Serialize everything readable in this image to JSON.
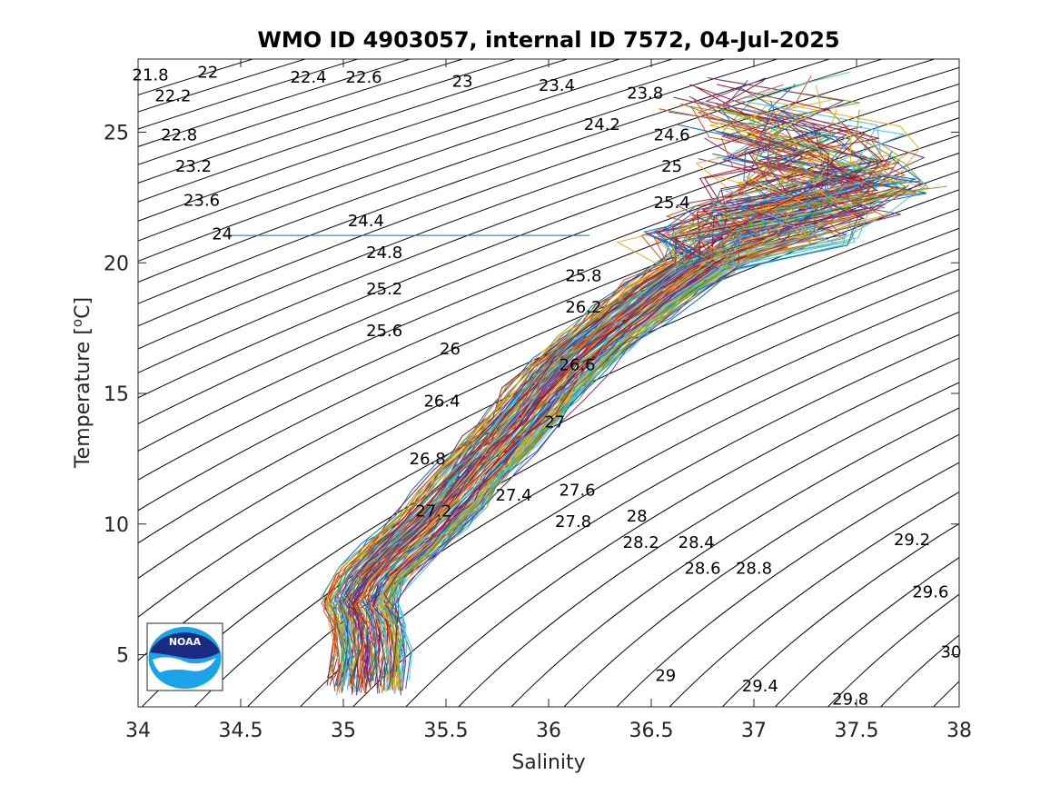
{
  "chart_data": {
    "type": "line",
    "title": "WMO ID 4903057, internal ID 7572, 04-Jul-2025",
    "xlabel": "Salinity",
    "ylabel": "Temperature [",
    "ylabel_superscript": "o",
    "ylabel_unit_tail": "C]",
    "xlim": [
      34,
      38
    ],
    "ylim": [
      3,
      27.8
    ],
    "xticks": [
      34,
      34.5,
      35,
      35.5,
      36,
      36.5,
      37,
      37.5,
      38
    ],
    "xtick_labels": [
      "34",
      "34.5",
      "35",
      "35.5",
      "36",
      "36.5",
      "37",
      "37.5",
      "38"
    ],
    "yticks": [
      5,
      10,
      15,
      20,
      25
    ],
    "ytick_labels": [
      "5",
      "10",
      "15",
      "20",
      "25"
    ],
    "grid": false,
    "density_contours": {
      "sigma_levels": [
        21.8,
        22,
        22.2,
        22.4,
        22.6,
        22.8,
        23,
        23.2,
        23.4,
        23.6,
        23.8,
        24,
        24.2,
        24.4,
        24.6,
        24.8,
        25,
        25.2,
        25.4,
        25.6,
        25.8,
        26,
        26.2,
        26.4,
        26.6,
        26.8,
        27,
        27.2,
        27.4,
        27.6,
        27.8,
        28,
        28.2,
        28.4,
        28.6,
        28.8,
        29,
        29.2,
        29.4,
        29.6,
        29.8,
        30
      ],
      "labels": [
        {
          "text": "21.8",
          "s": 34.06,
          "t": 27.2
        },
        {
          "text": "22",
          "s": 34.34,
          "t": 27.3
        },
        {
          "text": "22.2",
          "s": 34.17,
          "t": 26.4
        },
        {
          "text": "22.4",
          "s": 34.83,
          "t": 27.1
        },
        {
          "text": "22.6",
          "s": 35.1,
          "t": 27.1
        },
        {
          "text": "23",
          "s": 35.58,
          "t": 26.95
        },
        {
          "text": "23.4",
          "s": 36.04,
          "t": 26.8
        },
        {
          "text": "23.8",
          "s": 36.47,
          "t": 26.5
        },
        {
          "text": "24.2",
          "s": 36.26,
          "t": 25.3
        },
        {
          "text": "24.6",
          "s": 36.6,
          "t": 24.9
        },
        {
          "text": "22.8",
          "s": 34.2,
          "t": 24.9
        },
        {
          "text": "23.2",
          "s": 34.27,
          "t": 23.7
        },
        {
          "text": "25",
          "s": 36.6,
          "t": 23.7
        },
        {
          "text": "23.6",
          "s": 34.31,
          "t": 22.4
        },
        {
          "text": "25.4",
          "s": 36.6,
          "t": 22.3
        },
        {
          "text": "24.4",
          "s": 35.11,
          "t": 21.6
        },
        {
          "text": "24",
          "s": 34.41,
          "t": 21.1
        },
        {
          "text": "24.8",
          "s": 35.2,
          "t": 20.4
        },
        {
          "text": "25.8",
          "s": 36.17,
          "t": 19.5
        },
        {
          "text": "25.2",
          "s": 35.2,
          "t": 19.0
        },
        {
          "text": "26.2",
          "s": 36.17,
          "t": 18.3
        },
        {
          "text": "25.6",
          "s": 35.2,
          "t": 17.4
        },
        {
          "text": "26",
          "s": 35.52,
          "t": 16.7
        },
        {
          "text": "26.6",
          "s": 36.14,
          "t": 16.1
        },
        {
          "text": "26.4",
          "s": 35.48,
          "t": 14.7
        },
        {
          "text": "27",
          "s": 36.03,
          "t": 13.9
        },
        {
          "text": "26.8",
          "s": 35.41,
          "t": 12.5
        },
        {
          "text": "27.6",
          "s": 36.14,
          "t": 11.3
        },
        {
          "text": "27.4",
          "s": 35.83,
          "t": 11.1
        },
        {
          "text": "27.2",
          "s": 35.44,
          "t": 10.5
        },
        {
          "text": "28",
          "s": 36.43,
          "t": 10.3
        },
        {
          "text": "27.8",
          "s": 36.12,
          "t": 10.1
        },
        {
          "text": "28.2",
          "s": 36.45,
          "t": 9.3
        },
        {
          "text": "28.4",
          "s": 36.72,
          "t": 9.3
        },
        {
          "text": "29.2",
          "s": 37.77,
          "t": 9.4
        },
        {
          "text": "28.6",
          "s": 36.75,
          "t": 8.3
        },
        {
          "text": "28.8",
          "s": 37.0,
          "t": 8.3
        },
        {
          "text": "29.6",
          "s": 37.86,
          "t": 7.4
        },
        {
          "text": "30",
          "s": 37.96,
          "t": 5.1
        },
        {
          "text": "29",
          "s": 36.57,
          "t": 4.2
        },
        {
          "text": "29.4",
          "s": 37.03,
          "t": 3.8
        },
        {
          "text": "29.8",
          "s": 37.47,
          "t": 3.3
        }
      ]
    },
    "series_colors": [
      "#0072BD",
      "#D95319",
      "#EDB120",
      "#7E2F8E",
      "#77AC30",
      "#4DBEEE",
      "#A2142F"
    ],
    "profile_envelope": {
      "note_free": true,
      "points": [
        {
          "t": 3.8,
          "s": 35.12
        },
        {
          "t": 5.0,
          "s": 35.14
        },
        {
          "t": 6.3,
          "s": 35.12
        },
        {
          "t": 7.0,
          "s": 35.08
        },
        {
          "t": 8.0,
          "s": 35.15
        },
        {
          "t": 9.0,
          "s": 35.28
        },
        {
          "t": 10.0,
          "s": 35.42
        },
        {
          "t": 11.0,
          "s": 35.54
        },
        {
          "t": 12.0,
          "s": 35.64
        },
        {
          "t": 13.0,
          "s": 35.76
        },
        {
          "t": 14.0,
          "s": 35.88
        },
        {
          "t": 15.0,
          "s": 35.98
        },
        {
          "t": 16.0,
          "s": 36.1
        },
        {
          "t": 17.0,
          "s": 36.24
        },
        {
          "t": 18.0,
          "s": 36.4
        },
        {
          "t": 19.0,
          "s": 36.56
        },
        {
          "t": 20.0,
          "s": 36.76
        },
        {
          "t": 21.0,
          "s": 36.95
        },
        {
          "t": 22.0,
          "s": 37.15
        },
        {
          "t": 23.0,
          "s": 37.35
        },
        {
          "t": 24.0,
          "s": 37.3
        },
        {
          "t": 25.0,
          "s": 37.15
        },
        {
          "t": 26.0,
          "s": 37.05
        },
        {
          "t": 27.0,
          "s": 37.0
        }
      ],
      "spread": 0.18
    },
    "outlier_segment": {
      "s_start": 34.41,
      "s_end": 36.2,
      "t": 21.05
    }
  },
  "logo": {
    "text": "NOAA",
    "icon": "noaa-logo-icon",
    "colors": {
      "dark": "#1b2b82",
      "light": "#1aa3e8",
      "white": "#ffffff"
    }
  }
}
